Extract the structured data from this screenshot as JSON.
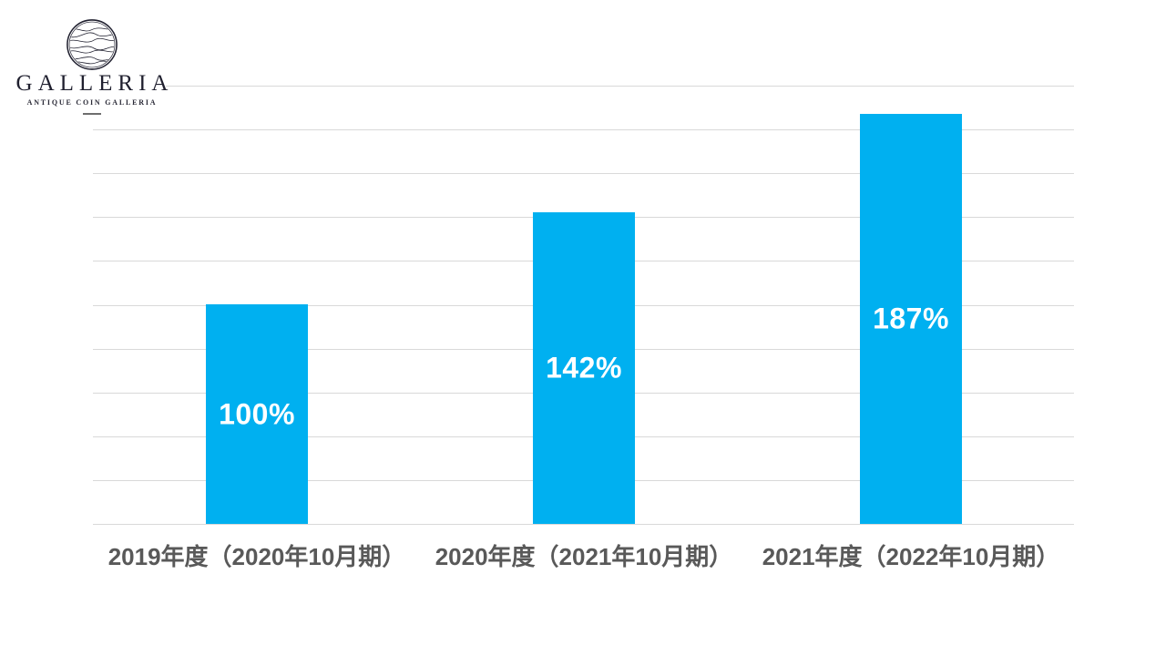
{
  "logo": {
    "brand": "GALLERIA",
    "tagline": "Antique Coin Galleria",
    "emblem_icon": "wave-circle-emblem",
    "ink_color": "#20202f"
  },
  "chart_data": {
    "type": "bar",
    "categories": [
      "2019年度（2020年10月期）",
      "2020年度（2021年10月期）",
      "2021年度（2022年10月期）"
    ],
    "values": [
      100,
      142,
      187
    ],
    "data_labels": [
      "100%",
      "142%",
      "187%"
    ],
    "title": "",
    "xlabel": "",
    "ylabel": "",
    "ylim": [
      0,
      200
    ],
    "grid_step": 20,
    "grid": true,
    "legend": false,
    "y_tick_labels_visible": false,
    "bar_color": "#00b0f0",
    "gridline_color": "#d9d9d9",
    "category_label_color": "#595959",
    "data_label_color": "#ffffff"
  }
}
